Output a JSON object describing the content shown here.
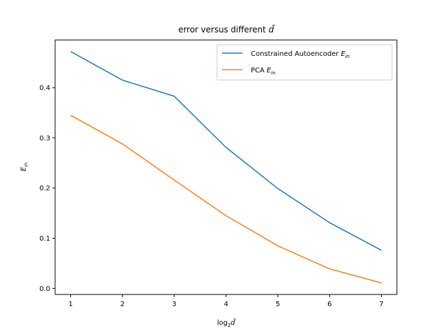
{
  "chart_data": {
    "type": "line",
    "title": "error versus different d̃",
    "xlabel": "log₂d̃",
    "ylabel": "E_in",
    "x": [
      1,
      2,
      3,
      4,
      5,
      6,
      7
    ],
    "xticks": [
      "1",
      "2",
      "3",
      "4",
      "5",
      "6",
      "7"
    ],
    "yticks": [
      "0.0",
      "0.1",
      "0.2",
      "0.3",
      "0.4"
    ],
    "xlim": [
      0.7,
      7.3
    ],
    "ylim": [
      -0.012,
      0.495
    ],
    "grid": false,
    "legend_position": "top-right",
    "series": [
      {
        "name": "Constrained Autoencoder E_in",
        "color": "#1f77b4",
        "values": [
          0.472,
          0.415,
          0.383,
          0.281,
          0.199,
          0.131,
          0.076
        ]
      },
      {
        "name": "PCA E_in",
        "color": "#ff7f0e",
        "values": [
          0.345,
          0.288,
          0.216,
          0.145,
          0.085,
          0.039,
          0.011
        ]
      }
    ]
  }
}
